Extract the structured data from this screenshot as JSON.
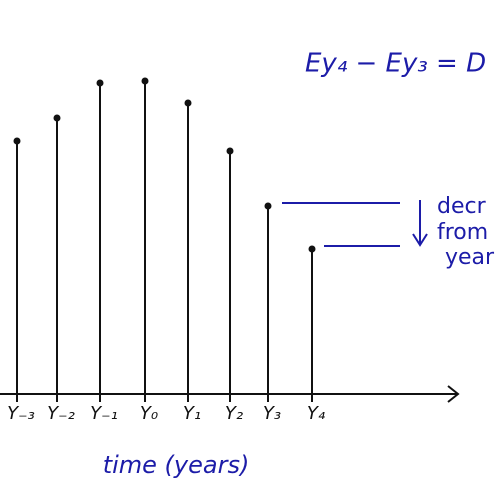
{
  "chart_data": {
    "type": "stem",
    "title": "Ey₄ − Ey₃ = D",
    "x_label": "time (years)",
    "annotation_lines": [
      "decr",
      "from",
      "year"
    ],
    "categories": [
      "Y₋₃",
      "Y₋₂",
      "Y₋₁",
      "Y₀",
      "Y₁",
      "Y₂",
      "Y₃",
      "Y₄"
    ],
    "values": [
      253,
      276,
      311,
      313,
      291,
      243,
      188,
      145
    ],
    "ylim": [
      0,
      400
    ],
    "color": "#111111"
  }
}
